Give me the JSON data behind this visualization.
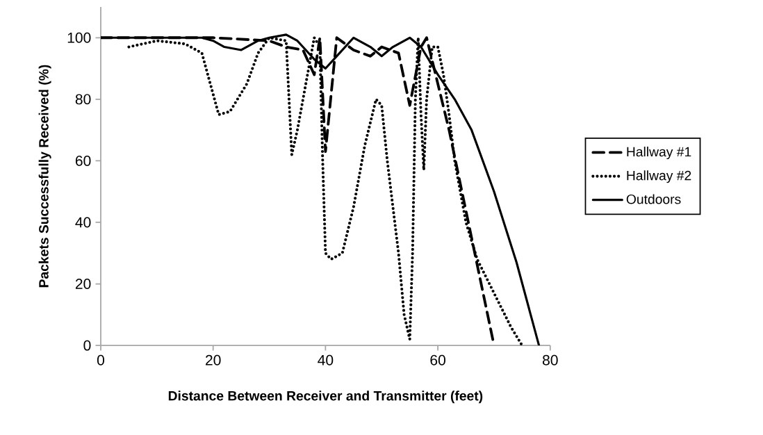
{
  "chart_data": {
    "type": "line",
    "xlabel": "Distance Between Receiver and Transmitter (feet)",
    "ylabel": "Packets Successfully Received (%)",
    "xlim": [
      0,
      80
    ],
    "xticks": [
      0,
      20,
      40,
      60,
      80
    ],
    "ylim": [
      0,
      110
    ],
    "yticks": [
      0,
      20,
      40,
      60,
      80,
      100
    ],
    "grid": false,
    "legend": "right",
    "marker": "none",
    "series": [
      {
        "name": "Hallway #1",
        "color": "#000000",
        "line_style": "dashed",
        "x": [
          0,
          10,
          20,
          30,
          33,
          36,
          38,
          39,
          40,
          42,
          45,
          48,
          50,
          53,
          55,
          57,
          58,
          62,
          66,
          70
        ],
        "values": [
          100,
          100,
          100,
          99,
          97,
          96,
          88,
          100,
          63,
          100,
          96,
          94,
          97,
          95,
          78,
          97,
          100,
          70,
          35,
          0
        ]
      },
      {
        "name": "Hallway #2",
        "color": "#000000",
        "line_style": "dotted",
        "x": [
          5,
          10,
          15,
          18,
          21,
          23,
          26,
          28,
          30,
          33,
          34,
          35,
          36,
          37,
          38,
          39,
          39.5,
          40,
          41,
          43,
          45,
          47,
          49,
          50,
          51,
          53,
          54,
          55,
          55.5,
          56,
          56.5,
          57,
          57.5,
          58,
          59,
          60,
          61,
          62,
          63,
          65,
          67,
          70,
          73,
          75
        ],
        "values": [
          97,
          99,
          98,
          95,
          75,
          76,
          85,
          95,
          100,
          99,
          62,
          70,
          80,
          90,
          100,
          97,
          60,
          30,
          28,
          30,
          45,
          65,
          80,
          78,
          60,
          30,
          10,
          2,
          30,
          80,
          100,
          75,
          57,
          80,
          97,
          97,
          88,
          75,
          60,
          40,
          28,
          17,
          6,
          0
        ]
      },
      {
        "name": "Outdoors",
        "color": "#000000",
        "line_style": "solid",
        "x": [
          0,
          18,
          20,
          22,
          25,
          28,
          30,
          33,
          35,
          38,
          40,
          42,
          45,
          48,
          50,
          52,
          55,
          57,
          60,
          63,
          66,
          70,
          74,
          78
        ],
        "values": [
          100,
          100,
          99,
          97,
          96,
          99,
          100,
          101,
          99,
          93,
          90,
          94,
          100,
          97,
          94,
          97,
          100,
          97,
          88,
          80,
          70,
          50,
          27,
          0
        ]
      }
    ]
  }
}
